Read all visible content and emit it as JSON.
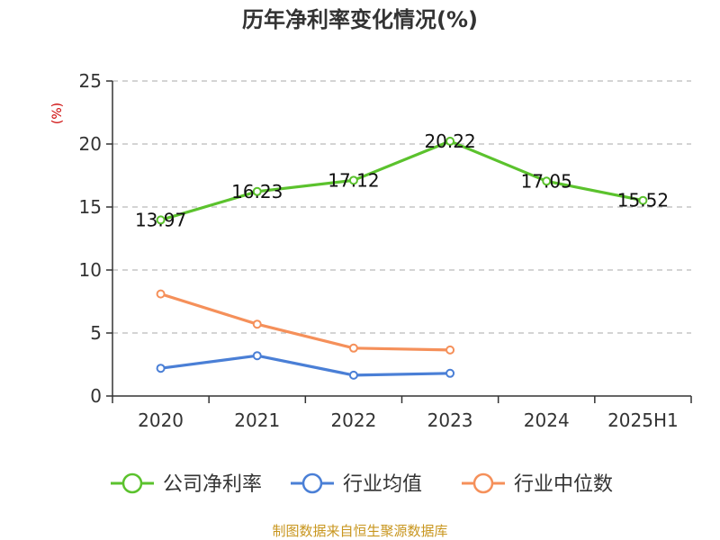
{
  "chart_data": {
    "type": "line",
    "title": "历年净利率变化情况(%)",
    "ylabel": "(%)",
    "categories": [
      "2020",
      "2021",
      "2022",
      "2023",
      "2024",
      "2025H1"
    ],
    "ylim": [
      0,
      25
    ],
    "yticks": [
      0,
      5,
      10,
      15,
      20,
      25
    ],
    "grid": true,
    "legend_position": "bottom",
    "series": [
      {
        "name": "公司净利率",
        "color": "#5bc22d",
        "values": [
          13.97,
          16.23,
          17.12,
          20.22,
          17.05,
          15.52
        ],
        "labels": [
          "13.97",
          "16.23",
          "17.12",
          "20.22",
          "17.05",
          "15.52"
        ]
      },
      {
        "name": "行业均值",
        "color": "#4a7fd6",
        "values": [
          2.2,
          3.2,
          1.65,
          1.8,
          null,
          null
        ]
      },
      {
        "name": "行业中位数",
        "color": "#f5905a",
        "values": [
          8.1,
          5.7,
          3.8,
          3.65,
          null,
          null
        ]
      }
    ]
  },
  "source": {
    "text": "制图数据来自恒生聚源数据库",
    "color": "#c8961e"
  }
}
